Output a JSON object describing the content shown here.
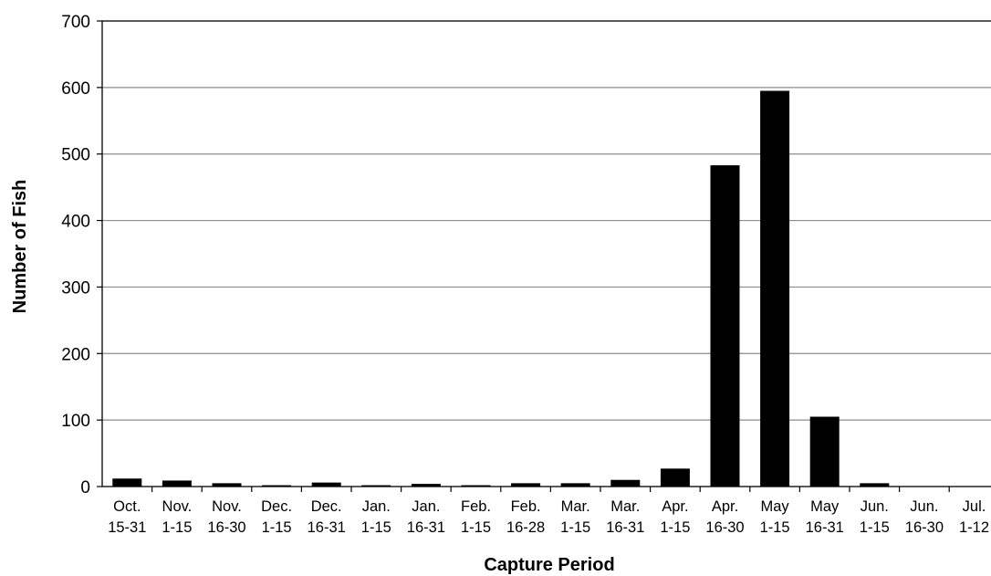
{
  "chart_data": {
    "type": "bar",
    "title": "",
    "xlabel": "Capture Period",
    "ylabel": "Number of Fish",
    "ylim": [
      0,
      700
    ],
    "y_ticks": [
      0,
      100,
      200,
      300,
      400,
      500,
      600,
      700
    ],
    "grid": "horizontal",
    "bar_color": "#000000",
    "categories": [
      [
        "Oct.",
        "15-31"
      ],
      [
        "Nov.",
        "1-15"
      ],
      [
        "Nov.",
        "16-30"
      ],
      [
        "Dec.",
        "1-15"
      ],
      [
        "Dec.",
        "16-31"
      ],
      [
        "Jan.",
        "1-15"
      ],
      [
        "Jan.",
        "16-31"
      ],
      [
        "Feb.",
        "1-15"
      ],
      [
        "Feb.",
        "16-28"
      ],
      [
        "Mar.",
        "1-15"
      ],
      [
        "Mar.",
        "16-31"
      ],
      [
        "Apr.",
        "1-15"
      ],
      [
        "Apr.",
        "16-30"
      ],
      [
        "May",
        "1-15"
      ],
      [
        "May",
        "16-31"
      ],
      [
        "Jun.",
        "1-15"
      ],
      [
        "Jun.",
        "16-30"
      ],
      [
        "Jul.",
        "1-12"
      ]
    ],
    "values": [
      12,
      9,
      5,
      2,
      6,
      2,
      4,
      2,
      5,
      5,
      10,
      27,
      483,
      595,
      105,
      5,
      0,
      0
    ]
  }
}
